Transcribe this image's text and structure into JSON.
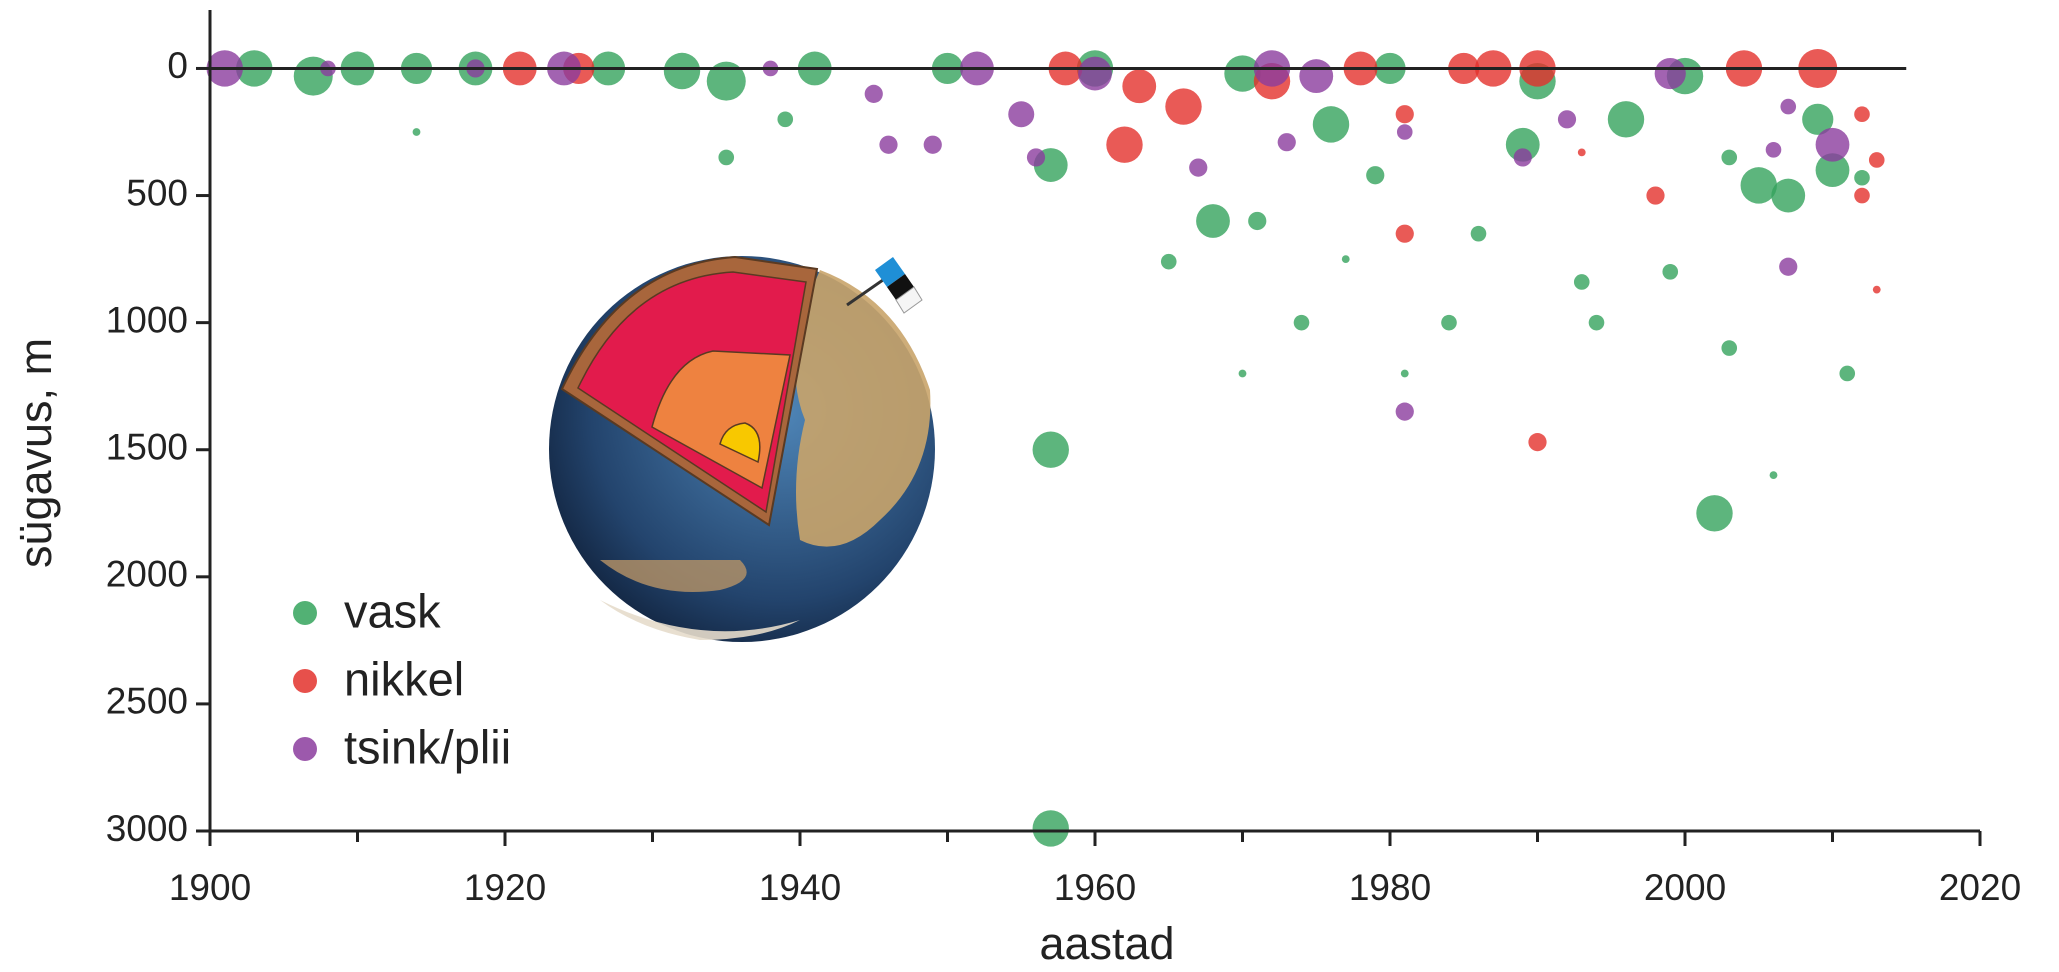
{
  "chart_data": {
    "type": "scatter",
    "x_label": "aastad",
    "y_label": "sügavus, m",
    "xlim": [
      1900,
      2020
    ],
    "xticks": [
      1900,
      1920,
      1940,
      1960,
      1980,
      2000,
      2020
    ],
    "xminor_ticks": [
      1910,
      1930,
      1950,
      1970,
      1990,
      2010
    ],
    "ylim": [
      -230,
      3000
    ],
    "yticks": [
      0,
      500,
      1000,
      1500,
      2000,
      2500,
      3000
    ],
    "y_inverted": true,
    "grid": false,
    "reference_line": {
      "y": 0,
      "x": [
        1900,
        2015
      ]
    },
    "legend_position": "lower left",
    "series": [
      {
        "name": "vask",
        "color": "#34a35c",
        "x": [
          1903,
          1907,
          1910,
          1914,
          1914,
          1918,
          1927,
          1932,
          1935,
          1935,
          1939,
          1941,
          1950,
          1957,
          1957,
          1957,
          1960,
          1965,
          1968,
          1970,
          1970,
          1971,
          1974,
          1976,
          1977,
          1979,
          1980,
          1981,
          1984,
          1986,
          1989,
          1990,
          1993,
          1994,
          1996,
          1999,
          2000,
          2002,
          2003,
          2003,
          2005,
          2006,
          2007,
          2009,
          2010,
          2011,
          2012
        ],
        "values": [
          0,
          30,
          0,
          0,
          250,
          0,
          0,
          10,
          50,
          350,
          200,
          0,
          0,
          380,
          1500,
          2990,
          0,
          760,
          600,
          20,
          1200,
          600,
          1000,
          220,
          750,
          420,
          0,
          1200,
          1000,
          650,
          300,
          50,
          840,
          1000,
          200,
          800,
          30,
          1750,
          1100,
          350,
          460,
          1600,
          500,
          200,
          400,
          1200,
          430
        ],
        "sizes": [
          14,
          15,
          13,
          12,
          3,
          13,
          13,
          14,
          15,
          6,
          6,
          13,
          12,
          13,
          14,
          14,
          14,
          6,
          13,
          14,
          3,
          7,
          6,
          14,
          3,
          7,
          12,
          3,
          6,
          6,
          13,
          14,
          6,
          6,
          14,
          6,
          14,
          14,
          6,
          6,
          14,
          3,
          13,
          12,
          13,
          6,
          6
        ]
      },
      {
        "name": "nikkel",
        "color": "#e3312c",
        "x": [
          1921,
          1925,
          1958,
          1962,
          1963,
          1966,
          1972,
          1978,
          1981,
          1981,
          1985,
          1987,
          1990,
          1990,
          1993,
          1998,
          2004,
          2009,
          2012,
          2012,
          2013,
          2013
        ],
        "values": [
          0,
          0,
          0,
          300,
          70,
          150,
          50,
          0,
          650,
          180,
          0,
          0,
          1470,
          0,
          330,
          500,
          0,
          0,
          500,
          180,
          360,
          870
        ],
        "sizes": [
          13,
          12,
          13,
          14,
          13,
          14,
          14,
          13,
          7,
          7,
          12,
          14,
          7,
          14,
          3,
          7,
          14,
          15,
          6,
          6,
          6,
          3
        ]
      },
      {
        "name": "tsink/plii",
        "color": "#8b3c9e",
        "x": [
          1901,
          1908,
          1918,
          1924,
          1938,
          1945,
          1946,
          1949,
          1952,
          1955,
          1956,
          1960,
          1967,
          1972,
          1973,
          1975,
          1981,
          1981,
          1989,
          1992,
          1999,
          2006,
          2007,
          2007,
          2010
        ],
        "values": [
          0,
          0,
          0,
          0,
          0,
          100,
          300,
          300,
          0,
          180,
          350,
          20,
          390,
          0,
          290,
          30,
          1350,
          250,
          350,
          200,
          20,
          320,
          780,
          150,
          300
        ],
        "sizes": [
          14,
          6,
          7,
          13,
          6,
          7,
          7,
          7,
          13,
          10,
          7,
          13,
          7,
          14,
          7,
          13,
          7,
          6,
          7,
          7,
          12,
          6,
          7,
          6,
          13
        ]
      }
    ]
  }
}
